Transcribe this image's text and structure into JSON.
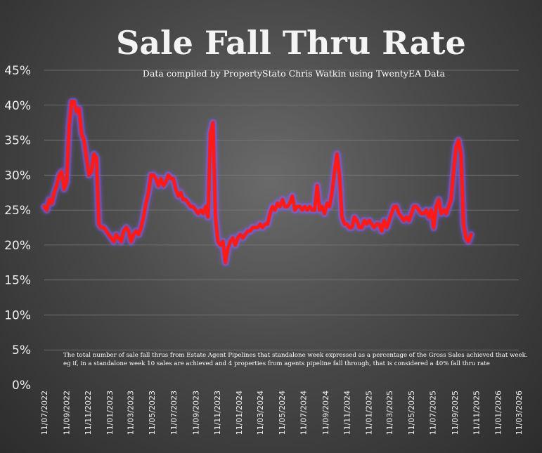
{
  "chart_data": {
    "type": "line",
    "title": "Sale Fall Thru Rate",
    "subtitle": "Data compiled by PropertyStato Chris Watkin using TwentyEA Data",
    "note_line1": "The total number of sale fall thrus from Estate Agent Pipelines that standalone week expressed as a percentage of the Gross Sales achieved that week.",
    "note_line2": "eg if, in a standalone week 10 sales are achieved and 4 properties from agents pipeline fall through, that is considered a 40%  fall thru rate",
    "ylim": [
      0,
      45
    ],
    "y_ticks": [
      "0%",
      "5%",
      "10%",
      "15%",
      "20%",
      "25%",
      "30%",
      "35%",
      "40%",
      "45%"
    ],
    "x_ticks": [
      "11/07/2022",
      "11/09/2022",
      "11/11/2022",
      "11/01/2023",
      "11/03/2023",
      "11/05/2023",
      "11/07/2023",
      "11/09/2023",
      "11/11/2023",
      "11/01/2024",
      "11/03/2024",
      "11/05/2024",
      "11/07/2024",
      "11/09/2024",
      "11/11/2024",
      "11/01/2025",
      "11/03/2025",
      "11/05/2025",
      "11/07/2025",
      "11/09/2025",
      "11/11/2025",
      "11/01/2026",
      "11/03/2026"
    ],
    "grid": true,
    "line_color": "#ff1a1a",
    "glow_color": "#8a5cff",
    "x_start": "2022-07-11",
    "x_end": "2026-03-11",
    "series": [
      {
        "points": [
          [
            "2022-07-11",
            25.5
          ],
          [
            "2022-07-18",
            25.0
          ],
          [
            "2022-07-25",
            26.5
          ],
          [
            "2022-08-01",
            26.0
          ],
          [
            "2022-08-08",
            27.5
          ],
          [
            "2022-08-15",
            28.5
          ],
          [
            "2022-08-22",
            30.0
          ],
          [
            "2022-08-29",
            30.5
          ],
          [
            "2022-09-05",
            28.0
          ],
          [
            "2022-09-12",
            29.0
          ],
          [
            "2022-09-19",
            37.0
          ],
          [
            "2022-09-26",
            40.5
          ],
          [
            "2022-10-03",
            40.5
          ],
          [
            "2022-10-10",
            39.0
          ],
          [
            "2022-10-17",
            39.5
          ],
          [
            "2022-10-24",
            36.0
          ],
          [
            "2022-10-31",
            35.0
          ],
          [
            "2022-11-07",
            32.5
          ],
          [
            "2022-11-14",
            30.0
          ],
          [
            "2022-11-21",
            30.5
          ],
          [
            "2022-11-28",
            33.0
          ],
          [
            "2022-12-05",
            32.5
          ],
          [
            "2022-12-12",
            23.0
          ],
          [
            "2022-12-19",
            22.5
          ],
          [
            "2022-12-26",
            22.5
          ],
          [
            "2023-01-02",
            22.0
          ],
          [
            "2023-01-09",
            21.5
          ],
          [
            "2023-01-16",
            21.0
          ],
          [
            "2023-01-23",
            20.5
          ],
          [
            "2023-01-30",
            21.5
          ],
          [
            "2023-02-06",
            21.0
          ],
          [
            "2023-02-13",
            20.5
          ],
          [
            "2023-02-20",
            22.0
          ],
          [
            "2023-02-27",
            22.5
          ],
          [
            "2023-03-06",
            22.0
          ],
          [
            "2023-03-13",
            20.5
          ],
          [
            "2023-03-20",
            21.5
          ],
          [
            "2023-03-27",
            22.0
          ],
          [
            "2023-04-03",
            21.5
          ],
          [
            "2023-04-10",
            22.5
          ],
          [
            "2023-04-17",
            24.0
          ],
          [
            "2023-04-24",
            26.0
          ],
          [
            "2023-05-01",
            27.5
          ],
          [
            "2023-05-08",
            30.0
          ],
          [
            "2023-05-15",
            30.0
          ],
          [
            "2023-05-22",
            29.5
          ],
          [
            "2023-05-29",
            28.5
          ],
          [
            "2023-06-05",
            29.5
          ],
          [
            "2023-06-12",
            28.5
          ],
          [
            "2023-06-19",
            29.0
          ],
          [
            "2023-06-26",
            30.0
          ],
          [
            "2023-07-03",
            29.5
          ],
          [
            "2023-07-10",
            29.5
          ],
          [
            "2023-07-17",
            28.0
          ],
          [
            "2023-07-24",
            27.0
          ],
          [
            "2023-07-31",
            27.5
          ],
          [
            "2023-08-07",
            26.5
          ],
          [
            "2023-08-14",
            26.5
          ],
          [
            "2023-08-21",
            26.0
          ],
          [
            "2023-08-28",
            25.5
          ],
          [
            "2023-09-04",
            25.5
          ],
          [
            "2023-09-11",
            25.0
          ],
          [
            "2023-09-18",
            24.5
          ],
          [
            "2023-09-25",
            25.0
          ],
          [
            "2023-10-02",
            24.5
          ],
          [
            "2023-10-09",
            25.5
          ],
          [
            "2023-10-16",
            24.0
          ],
          [
            "2023-10-23",
            36.0
          ],
          [
            "2023-10-30",
            37.5
          ],
          [
            "2023-11-06",
            24.0
          ],
          [
            "2023-11-13",
            20.5
          ],
          [
            "2023-11-20",
            20.0
          ],
          [
            "2023-11-27",
            20.5
          ],
          [
            "2023-12-04",
            17.5
          ],
          [
            "2023-12-11",
            19.5
          ],
          [
            "2023-12-18",
            20.5
          ],
          [
            "2023-12-25",
            21.0
          ],
          [
            "2024-01-01",
            20.0
          ],
          [
            "2024-01-08",
            21.0
          ],
          [
            "2024-01-15",
            21.5
          ],
          [
            "2024-01-22",
            21.0
          ],
          [
            "2024-01-29",
            21.5
          ],
          [
            "2024-02-05",
            22.0
          ],
          [
            "2024-02-12",
            22.0
          ],
          [
            "2024-02-19",
            22.5
          ],
          [
            "2024-02-26",
            22.5
          ],
          [
            "2024-03-04",
            22.5
          ],
          [
            "2024-03-11",
            23.0
          ],
          [
            "2024-03-18",
            22.5
          ],
          [
            "2024-03-25",
            23.0
          ],
          [
            "2024-04-01",
            23.0
          ],
          [
            "2024-04-08",
            24.5
          ],
          [
            "2024-04-15",
            25.5
          ],
          [
            "2024-04-22",
            25.0
          ],
          [
            "2024-04-29",
            26.0
          ],
          [
            "2024-05-06",
            25.5
          ],
          [
            "2024-05-13",
            26.5
          ],
          [
            "2024-05-20",
            25.5
          ],
          [
            "2024-05-27",
            25.5
          ],
          [
            "2024-06-03",
            26.0
          ],
          [
            "2024-06-10",
            27.0
          ],
          [
            "2024-06-17",
            25.0
          ],
          [
            "2024-06-24",
            25.5
          ],
          [
            "2024-07-01",
            25.5
          ],
          [
            "2024-07-08",
            25.0
          ],
          [
            "2024-07-15",
            25.5
          ],
          [
            "2024-07-22",
            25.0
          ],
          [
            "2024-07-29",
            25.5
          ],
          [
            "2024-08-05",
            25.0
          ],
          [
            "2024-08-12",
            25.0
          ],
          [
            "2024-08-19",
            28.5
          ],
          [
            "2024-08-26",
            25.0
          ],
          [
            "2024-09-02",
            25.5
          ],
          [
            "2024-09-09",
            24.5
          ],
          [
            "2024-09-16",
            26.0
          ],
          [
            "2024-09-23",
            25.5
          ],
          [
            "2024-09-30",
            27.5
          ],
          [
            "2024-10-07",
            30.5
          ],
          [
            "2024-10-14",
            33.0
          ],
          [
            "2024-10-21",
            30.0
          ],
          [
            "2024-10-28",
            24.0
          ],
          [
            "2024-11-04",
            23.0
          ],
          [
            "2024-11-11",
            23.0
          ],
          [
            "2024-11-18",
            22.5
          ],
          [
            "2024-11-25",
            22.5
          ],
          [
            "2024-12-02",
            24.0
          ],
          [
            "2024-12-09",
            23.5
          ],
          [
            "2024-12-16",
            22.5
          ],
          [
            "2024-12-23",
            22.5
          ],
          [
            "2024-12-30",
            23.5
          ],
          [
            "2025-01-06",
            23.0
          ],
          [
            "2025-01-13",
            23.5
          ],
          [
            "2025-01-20",
            23.0
          ],
          [
            "2025-01-27",
            22.5
          ],
          [
            "2025-02-03",
            23.0
          ],
          [
            "2025-02-10",
            23.0
          ],
          [
            "2025-02-17",
            22.0
          ],
          [
            "2025-02-24",
            23.5
          ],
          [
            "2025-03-03",
            22.5
          ],
          [
            "2025-03-10",
            23.5
          ],
          [
            "2025-03-17",
            24.5
          ],
          [
            "2025-03-24",
            25.5
          ],
          [
            "2025-03-31",
            25.5
          ],
          [
            "2025-04-07",
            24.5
          ],
          [
            "2025-04-14",
            24.0
          ],
          [
            "2025-04-21",
            23.5
          ],
          [
            "2025-04-28",
            24.0
          ],
          [
            "2025-05-05",
            23.5
          ],
          [
            "2025-05-12",
            24.5
          ],
          [
            "2025-05-19",
            25.5
          ],
          [
            "2025-05-26",
            25.5
          ],
          [
            "2025-06-02",
            25.0
          ],
          [
            "2025-06-09",
            24.5
          ],
          [
            "2025-06-16",
            24.5
          ],
          [
            "2025-06-23",
            25.0
          ],
          [
            "2025-06-30",
            24.0
          ],
          [
            "2025-07-07",
            25.0
          ],
          [
            "2025-07-14",
            22.5
          ],
          [
            "2025-07-21",
            25.5
          ],
          [
            "2025-07-28",
            26.5
          ],
          [
            "2025-08-04",
            24.5
          ],
          [
            "2025-08-11",
            25.0
          ],
          [
            "2025-08-18",
            24.5
          ],
          [
            "2025-08-25",
            25.5
          ],
          [
            "2025-09-01",
            26.5
          ],
          [
            "2025-09-08",
            30.5
          ],
          [
            "2025-09-15",
            34.0
          ],
          [
            "2025-09-22",
            35.0
          ],
          [
            "2025-09-29",
            33.0
          ],
          [
            "2025-10-06",
            23.0
          ],
          [
            "2025-10-13",
            21.0
          ],
          [
            "2025-10-20",
            20.5
          ],
          [
            "2025-10-27",
            21.5
          ]
        ]
      }
    ]
  }
}
